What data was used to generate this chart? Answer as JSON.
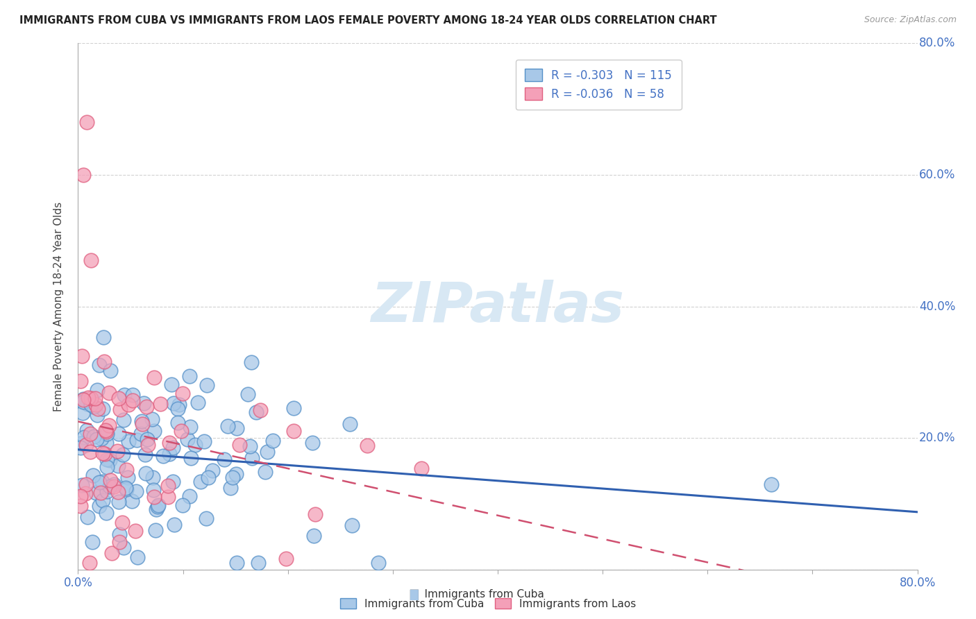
{
  "title": "IMMIGRANTS FROM CUBA VS IMMIGRANTS FROM LAOS FEMALE POVERTY AMONG 18-24 YEAR OLDS CORRELATION CHART",
  "source_text": "Source: ZipAtlas.com",
  "ylabel": "Female Poverty Among 18-24 Year Olds",
  "xlim": [
    0,
    0.8
  ],
  "ylim": [
    0,
    0.8
  ],
  "legend_r_cuba": "-0.303",
  "legend_n_cuba": "115",
  "legend_r_laos": "-0.036",
  "legend_n_laos": "58",
  "cuba_color": "#a8c8e8",
  "laos_color": "#f4a0b8",
  "cuba_edge_color": "#5590c8",
  "laos_edge_color": "#e06080",
  "cuba_line_color": "#3060b0",
  "laos_line_color": "#d05070",
  "watermark_color": "#d8e8f4",
  "background_color": "#ffffff",
  "grid_color": "#cccccc",
  "tick_color": "#4472c4",
  "title_color": "#222222",
  "ylabel_color": "#444444",
  "watermark": "ZIPatlas"
}
